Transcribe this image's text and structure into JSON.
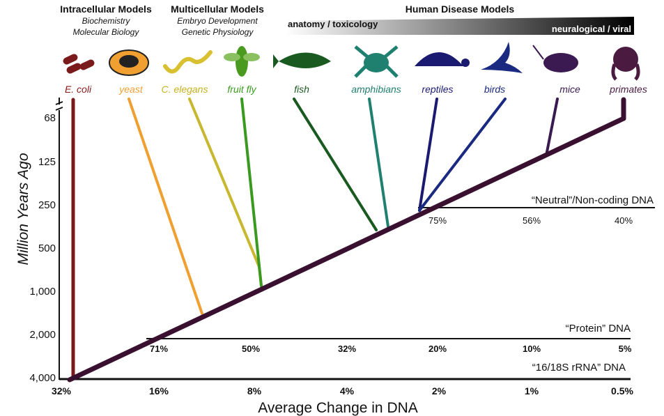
{
  "header": {
    "groups": [
      {
        "title": "Intracellular Models",
        "lines": [
          "Biochemistry",
          "Molecular Biology"
        ]
      },
      {
        "title": "Multicellular Models",
        "lines": [
          "Embryo Development",
          "Genetic Physiology"
        ]
      },
      {
        "title": "Human Disease Models"
      }
    ],
    "scale": {
      "left": "anatomy / toxicology",
      "right": "neuralogical / viral"
    }
  },
  "organisms": [
    "E. coli",
    "yeast",
    "C. elegans",
    "fruit fly",
    "fish",
    "amphibians",
    "reptiles",
    "birds",
    "mice",
    "primates"
  ],
  "y_axis": {
    "title": "Million Years Ago",
    "ticks": [
      "68",
      "125",
      "250",
      "500",
      "1,000",
      "2,000",
      "4,000"
    ]
  },
  "x_axis": {
    "title": "Average Change in DNA",
    "ticks": [
      "32%",
      "16%",
      "8%",
      "4%",
      "2%",
      "1%",
      "0.5%"
    ]
  },
  "scales": [
    {
      "label": "“Neutral”/Non-coding DNA",
      "ticks": [
        "75%",
        "56%",
        "40%"
      ]
    },
    {
      "label": "“Protein” DNA",
      "ticks": [
        "71%",
        "50%",
        "32%",
        "20%",
        "10%",
        "5%"
      ]
    },
    {
      "label": "“16/18S rRNA” DNA"
    }
  ]
}
